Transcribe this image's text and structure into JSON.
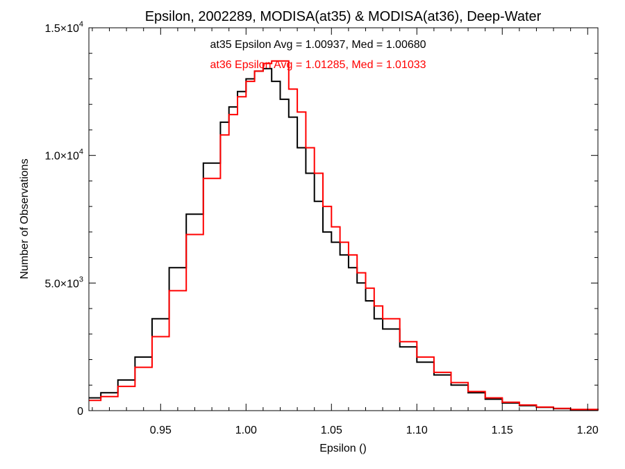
{
  "chart_data": {
    "type": "line",
    "title": "Epsilon, 2002289, MODISA(at35) & MODISA(at36), Deep-Water",
    "xlabel": "Epsilon ()",
    "ylabel": "Number of Observations",
    "xlim": [
      0.908,
      1.206
    ],
    "ylim": [
      0,
      15000
    ],
    "x_ticks": [
      {
        "value": 0.95,
        "label": "0.95"
      },
      {
        "value": 1.0,
        "label": "1.00"
      },
      {
        "value": 1.05,
        "label": "1.05"
      },
      {
        "value": 1.1,
        "label": "1.10"
      },
      {
        "value": 1.15,
        "label": "1.15"
      },
      {
        "value": 1.2,
        "label": "1.20"
      }
    ],
    "y_ticks": [
      {
        "value": 0,
        "mantissa": "0",
        "exponent": ""
      },
      {
        "value": 5000,
        "mantissa": "5.0×10",
        "exponent": "3"
      },
      {
        "value": 10000,
        "mantissa": "1.0×10",
        "exponent": "4"
      },
      {
        "value": 15000,
        "mantissa": "1.5×10",
        "exponent": "4"
      }
    ],
    "grid": false,
    "annotations": [
      {
        "text": "at35 Epsilon Avg = 1.00937, Med = 1.00680",
        "color": "#000000"
      },
      {
        "text": "at36 Epsilon Avg = 1.01285, Med = 1.01033",
        "color": "#ff0000"
      }
    ],
    "series": [
      {
        "color": "#000000",
        "x": [
          0.908,
          0.915,
          0.925,
          0.935,
          0.945,
          0.955,
          0.965,
          0.975,
          0.985,
          0.99,
          0.995,
          1.0,
          1.005,
          1.01,
          1.015,
          1.02,
          1.025,
          1.03,
          1.035,
          1.04,
          1.045,
          1.05,
          1.055,
          1.06,
          1.065,
          1.07,
          1.075,
          1.08,
          1.09,
          1.1,
          1.11,
          1.12,
          1.13,
          1.14,
          1.15,
          1.16,
          1.17,
          1.18,
          1.19,
          1.206
        ],
        "y": [
          500,
          700,
          1200,
          2100,
          3600,
          5600,
          7700,
          9700,
          11300,
          11900,
          12500,
          13000,
          13300,
          13400,
          12900,
          12200,
          11500,
          10300,
          9300,
          8200,
          7000,
          6600,
          6100,
          5600,
          5000,
          4300,
          3600,
          3200,
          2500,
          1900,
          1400,
          1000,
          700,
          450,
          300,
          200,
          130,
          80,
          40,
          10
        ]
      },
      {
        "color": "#ff0000",
        "x": [
          0.908,
          0.915,
          0.925,
          0.935,
          0.945,
          0.955,
          0.965,
          0.975,
          0.985,
          0.99,
          0.995,
          1.0,
          1.005,
          1.01,
          1.015,
          1.02,
          1.025,
          1.03,
          1.035,
          1.04,
          1.045,
          1.05,
          1.055,
          1.06,
          1.065,
          1.07,
          1.075,
          1.08,
          1.09,
          1.1,
          1.11,
          1.12,
          1.13,
          1.14,
          1.15,
          1.16,
          1.17,
          1.18,
          1.19,
          1.206
        ],
        "y": [
          400,
          550,
          950,
          1700,
          2900,
          4700,
          6900,
          9100,
          10800,
          11600,
          12300,
          12900,
          13300,
          13600,
          13700,
          13700,
          12600,
          11700,
          10300,
          9300,
          8000,
          7200,
          6600,
          6100,
          5400,
          4800,
          4100,
          3600,
          2700,
          2100,
          1500,
          1100,
          750,
          500,
          330,
          220,
          140,
          90,
          45,
          10
        ]
      }
    ]
  }
}
